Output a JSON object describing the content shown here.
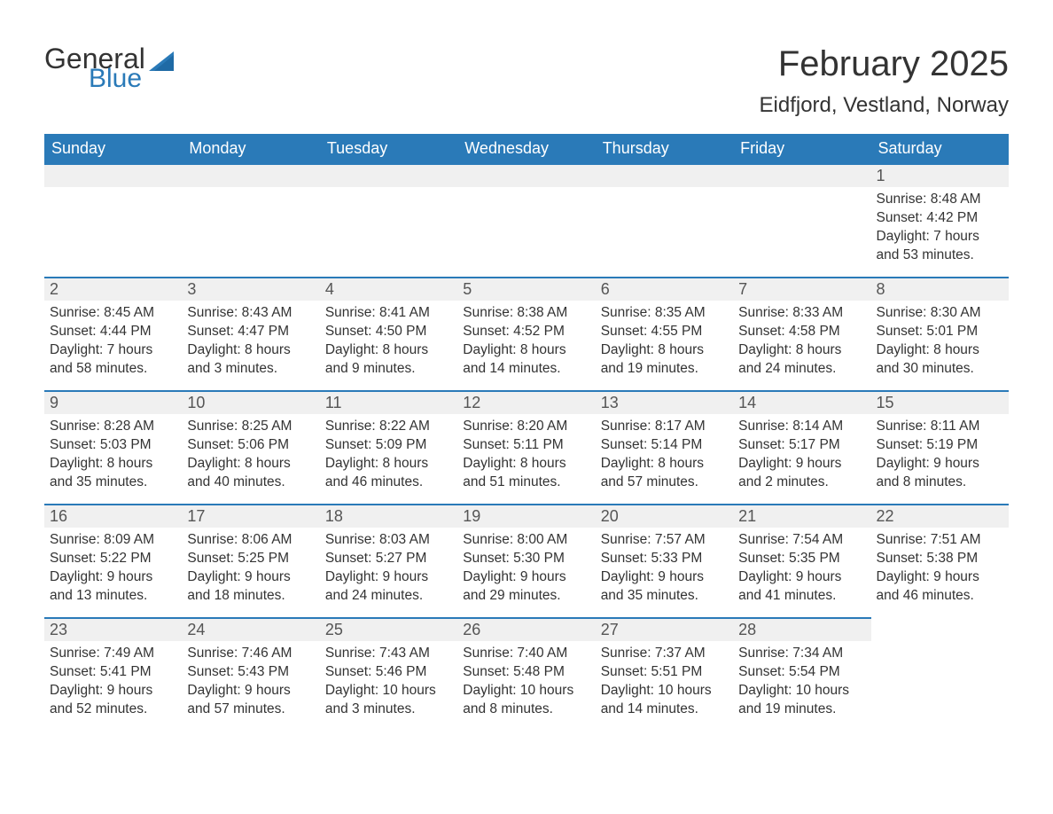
{
  "logo": {
    "word1": "General",
    "word2": "Blue",
    "tri_color": "#2a7ab8"
  },
  "title": "February 2025",
  "location": "Eidfjord, Vestland, Norway",
  "colors": {
    "header_bg": "#2a7ab8",
    "header_text": "#ffffff",
    "daynum_bg": "#f0f0f0",
    "row_border": "#2a7ab8",
    "body_text": "#333333"
  },
  "daynames": [
    "Sunday",
    "Monday",
    "Tuesday",
    "Wednesday",
    "Thursday",
    "Friday",
    "Saturday"
  ],
  "weeks": [
    [
      null,
      null,
      null,
      null,
      null,
      null,
      {
        "n": "1",
        "sunrise": "8:48 AM",
        "sunset": "4:42 PM",
        "day_h": "7",
        "day_m": "53"
      }
    ],
    [
      {
        "n": "2",
        "sunrise": "8:45 AM",
        "sunset": "4:44 PM",
        "day_h": "7",
        "day_m": "58"
      },
      {
        "n": "3",
        "sunrise": "8:43 AM",
        "sunset": "4:47 PM",
        "day_h": "8",
        "day_m": "3"
      },
      {
        "n": "4",
        "sunrise": "8:41 AM",
        "sunset": "4:50 PM",
        "day_h": "8",
        "day_m": "9"
      },
      {
        "n": "5",
        "sunrise": "8:38 AM",
        "sunset": "4:52 PM",
        "day_h": "8",
        "day_m": "14"
      },
      {
        "n": "6",
        "sunrise": "8:35 AM",
        "sunset": "4:55 PM",
        "day_h": "8",
        "day_m": "19"
      },
      {
        "n": "7",
        "sunrise": "8:33 AM",
        "sunset": "4:58 PM",
        "day_h": "8",
        "day_m": "24"
      },
      {
        "n": "8",
        "sunrise": "8:30 AM",
        "sunset": "5:01 PM",
        "day_h": "8",
        "day_m": "30"
      }
    ],
    [
      {
        "n": "9",
        "sunrise": "8:28 AM",
        "sunset": "5:03 PM",
        "day_h": "8",
        "day_m": "35"
      },
      {
        "n": "10",
        "sunrise": "8:25 AM",
        "sunset": "5:06 PM",
        "day_h": "8",
        "day_m": "40"
      },
      {
        "n": "11",
        "sunrise": "8:22 AM",
        "sunset": "5:09 PM",
        "day_h": "8",
        "day_m": "46"
      },
      {
        "n": "12",
        "sunrise": "8:20 AM",
        "sunset": "5:11 PM",
        "day_h": "8",
        "day_m": "51"
      },
      {
        "n": "13",
        "sunrise": "8:17 AM",
        "sunset": "5:14 PM",
        "day_h": "8",
        "day_m": "57"
      },
      {
        "n": "14",
        "sunrise": "8:14 AM",
        "sunset": "5:17 PM",
        "day_h": "9",
        "day_m": "2"
      },
      {
        "n": "15",
        "sunrise": "8:11 AM",
        "sunset": "5:19 PM",
        "day_h": "9",
        "day_m": "8"
      }
    ],
    [
      {
        "n": "16",
        "sunrise": "8:09 AM",
        "sunset": "5:22 PM",
        "day_h": "9",
        "day_m": "13"
      },
      {
        "n": "17",
        "sunrise": "8:06 AM",
        "sunset": "5:25 PM",
        "day_h": "9",
        "day_m": "18"
      },
      {
        "n": "18",
        "sunrise": "8:03 AM",
        "sunset": "5:27 PM",
        "day_h": "9",
        "day_m": "24"
      },
      {
        "n": "19",
        "sunrise": "8:00 AM",
        "sunset": "5:30 PM",
        "day_h": "9",
        "day_m": "29"
      },
      {
        "n": "20",
        "sunrise": "7:57 AM",
        "sunset": "5:33 PM",
        "day_h": "9",
        "day_m": "35"
      },
      {
        "n": "21",
        "sunrise": "7:54 AM",
        "sunset": "5:35 PM",
        "day_h": "9",
        "day_m": "41"
      },
      {
        "n": "22",
        "sunrise": "7:51 AM",
        "sunset": "5:38 PM",
        "day_h": "9",
        "day_m": "46"
      }
    ],
    [
      {
        "n": "23",
        "sunrise": "7:49 AM",
        "sunset": "5:41 PM",
        "day_h": "9",
        "day_m": "52"
      },
      {
        "n": "24",
        "sunrise": "7:46 AM",
        "sunset": "5:43 PM",
        "day_h": "9",
        "day_m": "57"
      },
      {
        "n": "25",
        "sunrise": "7:43 AM",
        "sunset": "5:46 PM",
        "day_h": "10",
        "day_m": "3"
      },
      {
        "n": "26",
        "sunrise": "7:40 AM",
        "sunset": "5:48 PM",
        "day_h": "10",
        "day_m": "8"
      },
      {
        "n": "27",
        "sunrise": "7:37 AM",
        "sunset": "5:51 PM",
        "day_h": "10",
        "day_m": "14"
      },
      {
        "n": "28",
        "sunrise": "7:34 AM",
        "sunset": "5:54 PM",
        "day_h": "10",
        "day_m": "19"
      },
      null
    ]
  ],
  "labels": {
    "sunrise": "Sunrise:",
    "sunset": "Sunset:",
    "daylight1": "Daylight:",
    "hours": "hours",
    "and": "and",
    "minutes": "minutes."
  }
}
